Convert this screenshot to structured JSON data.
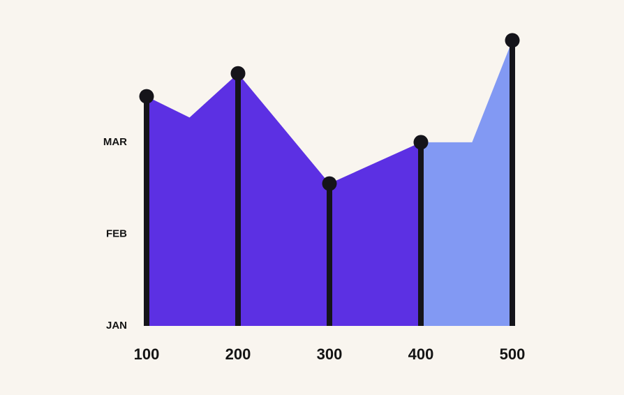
{
  "chart_data": {
    "type": "area",
    "x": [
      100,
      147,
      200,
      300,
      400,
      456,
      500
    ],
    "values": [
      2.5,
      2.27,
      2.75,
      1.55,
      2.0,
      2.0,
      3.11
    ],
    "colors": [
      "#5c30e3",
      "#8299f3"
    ],
    "color_split_x": 400,
    "stem_color": "#15141a",
    "xlim": [
      100,
      500
    ],
    "xticks": [
      100,
      200,
      300,
      400,
      500
    ],
    "ylim": [
      0,
      3.2
    ],
    "yticks": [
      {
        "value": 0,
        "label": "JAN"
      },
      {
        "value": 1,
        "label": "FEB"
      },
      {
        "value": 2,
        "label": "MAR"
      }
    ]
  }
}
